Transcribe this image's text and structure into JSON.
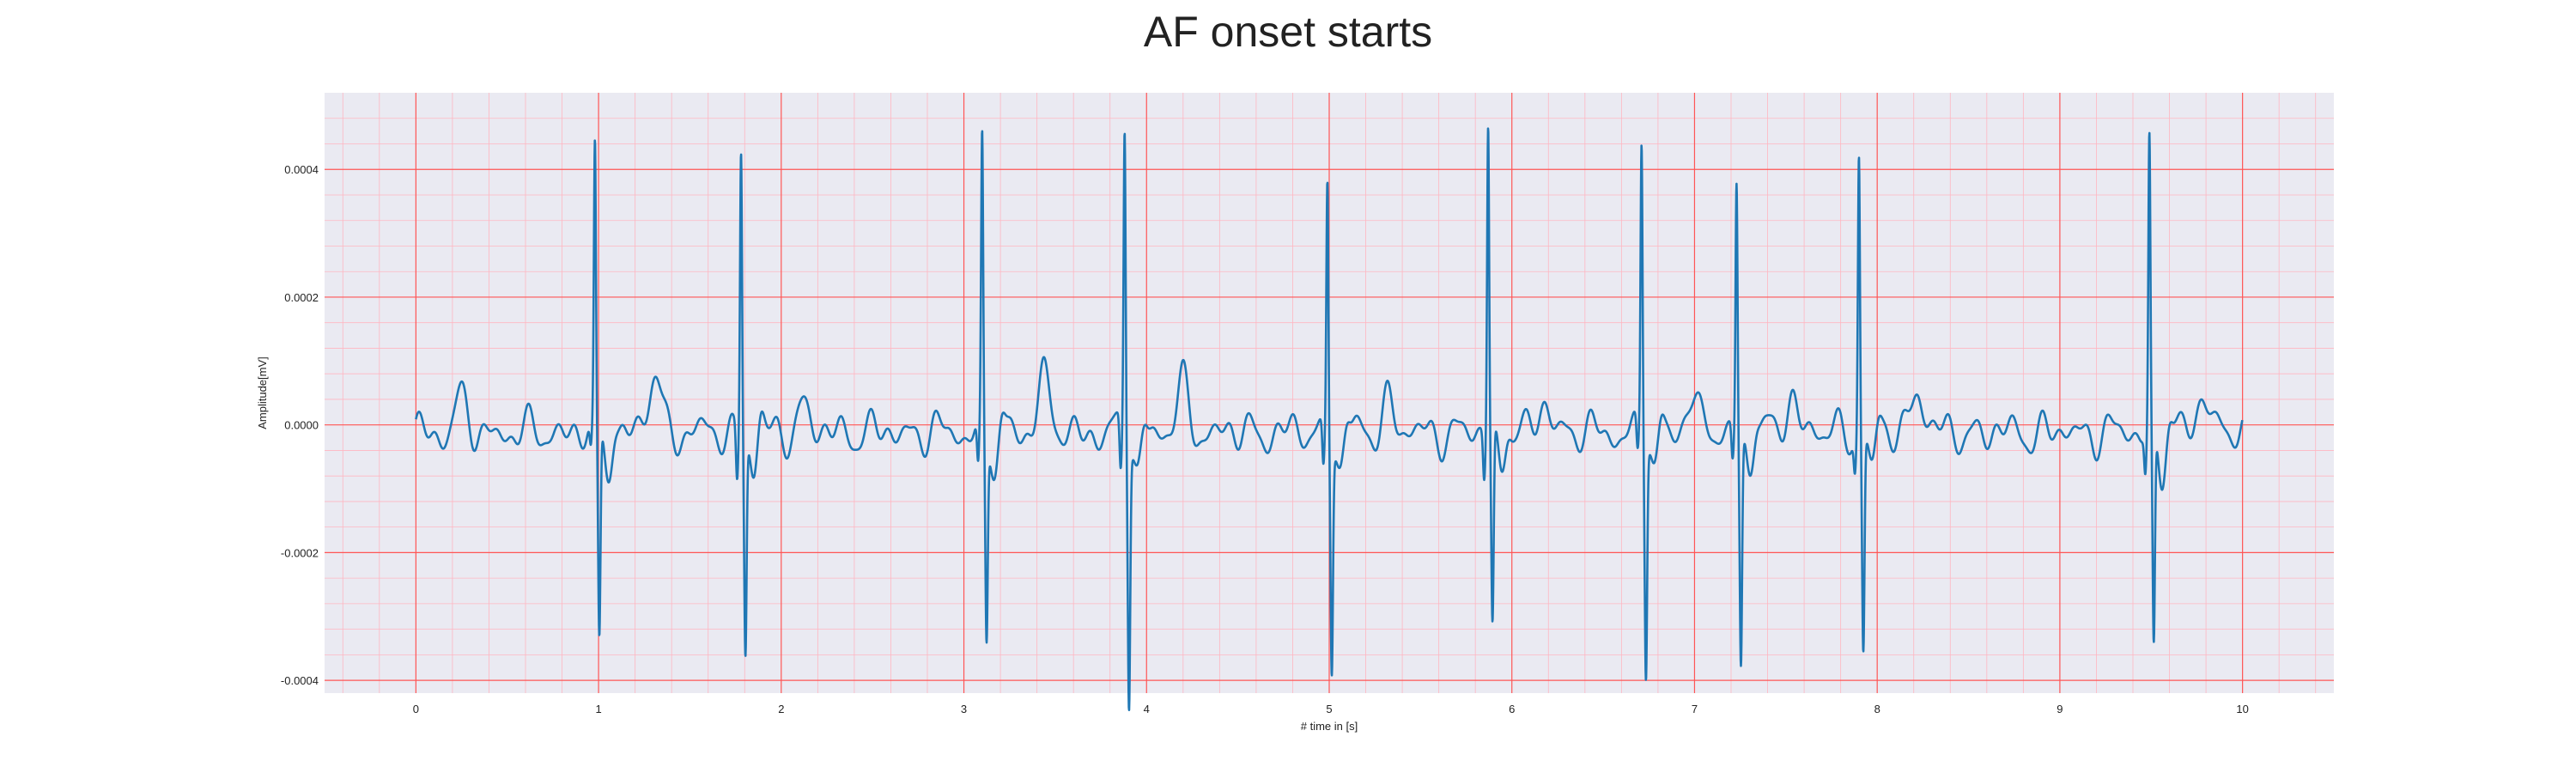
{
  "chart_data": {
    "type": "line",
    "title": "AF onset starts",
    "xlabel": "# time in [s]",
    "ylabel": "Amplitude[mV]",
    "xlim": [
      -0.5,
      10.5
    ],
    "ylim": [
      -0.00042,
      0.00052
    ],
    "x_ticks": [
      0,
      1,
      2,
      3,
      4,
      5,
      6,
      7,
      8,
      9,
      10
    ],
    "x_tick_labels": [
      "0",
      "1",
      "2",
      "3",
      "4",
      "5",
      "6",
      "7",
      "8",
      "9",
      "10"
    ],
    "y_ticks": [
      -0.0004,
      -0.0002,
      0.0,
      0.0002,
      0.0004
    ],
    "y_tick_labels": [
      "-0.0004",
      "-0.0002",
      "0.0000",
      "0.0002",
      "0.0004"
    ],
    "grid": "on",
    "minor_grid": "on",
    "colors": {
      "line": "#1f77b4",
      "plot_background": "#eaeaf2",
      "major_grid": "#ff5555",
      "minor_grid": "#ffb6c1"
    },
    "beats": [
      {
        "t": 0.98,
        "r": 0.00042,
        "s": -0.00032,
        "q": -4e-05
      },
      {
        "t": 1.78,
        "r": 0.00044,
        "s": -0.00032,
        "q": -8e-05
      },
      {
        "t": 3.1,
        "r": 0.00044,
        "s": -0.0003,
        "q": -7e-05
      },
      {
        "t": 3.88,
        "r": 0.00047,
        "s": -0.00038,
        "q": -8e-05
      },
      {
        "t": 4.99,
        "r": 0.00039,
        "s": -0.00033,
        "q": -7e-05
      },
      {
        "t": 5.87,
        "r": 0.00048,
        "s": -0.00029,
        "q": -7e-05
      },
      {
        "t": 6.71,
        "r": 0.00045,
        "s": -0.00034,
        "q": -5e-05
      },
      {
        "t": 7.23,
        "r": 0.00039,
        "s": -0.00034,
        "q": -5e-05
      },
      {
        "t": 7.9,
        "r": 0.00043,
        "s": -0.00032,
        "q": -5e-05
      },
      {
        "t": 9.49,
        "r": 0.00044,
        "s": -0.00033,
        "q": -6e-05
      }
    ],
    "t_waves": [
      {
        "t": 1.31,
        "a": 9.5e-05
      },
      {
        "t": 3.43,
        "a": 9e-05
      },
      {
        "t": 4.2,
        "a": 7e-05
      },
      {
        "t": 8.22,
        "a": 7.5e-05
      },
      {
        "t": 9.79,
        "a": 7e-05
      },
      {
        "t": 0.24,
        "a": 5e-05
      },
      {
        "t": 2.12,
        "a": 4e-05
      },
      {
        "t": 5.32,
        "a": 5e-05
      },
      {
        "t": 6.19,
        "a": 5e-05
      },
      {
        "t": 6.98,
        "a": 6e-05
      },
      {
        "t": 7.53,
        "a": 6e-05
      }
    ]
  }
}
